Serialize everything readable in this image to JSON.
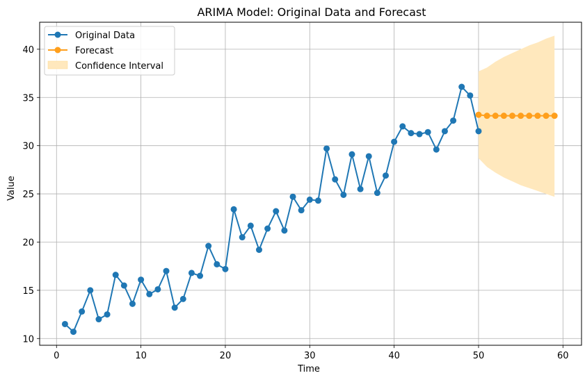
{
  "chart_data": {
    "type": "line",
    "title": "ARIMA Model: Original Data and Forecast",
    "xlabel": "Time",
    "ylabel": "Value",
    "xlim": [
      -2,
      62.2
    ],
    "ylim": [
      9.3,
      42.8
    ],
    "xticks": [
      0,
      10,
      20,
      30,
      40,
      50,
      60
    ],
    "yticks": [
      10,
      15,
      20,
      25,
      30,
      35,
      40
    ],
    "grid": true,
    "legend_position": "top-left",
    "series": [
      {
        "name": "Original Data",
        "color": "#1f77b4",
        "marker": "circle",
        "x": [
          1,
          2,
          3,
          4,
          5,
          6,
          7,
          8,
          9,
          10,
          11,
          12,
          13,
          14,
          15,
          16,
          17,
          18,
          19,
          20,
          21,
          22,
          23,
          24,
          25,
          26,
          27,
          28,
          29,
          30,
          31,
          32,
          33,
          34,
          35,
          36,
          37,
          38,
          39,
          40,
          41,
          42,
          43,
          44,
          45,
          46,
          47,
          48,
          49,
          50
        ],
        "y": [
          11.5,
          10.7,
          12.8,
          15.0,
          12.0,
          12.5,
          16.6,
          15.5,
          13.6,
          16.1,
          14.6,
          15.1,
          17.0,
          13.2,
          14.1,
          16.8,
          16.5,
          19.6,
          17.7,
          17.2,
          23.4,
          20.5,
          21.7,
          19.2,
          21.4,
          23.2,
          21.2,
          24.7,
          23.3,
          24.4,
          24.3,
          29.7,
          26.5,
          24.9,
          29.1,
          25.5,
          28.9,
          25.1,
          26.9,
          30.4,
          32.0,
          31.3,
          31.2,
          31.4,
          29.6,
          31.5,
          32.6,
          36.1,
          35.2,
          31.5
        ]
      },
      {
        "name": "Forecast",
        "color": "#ff9f1c",
        "marker": "circle",
        "x": [
          50,
          51,
          52,
          53,
          54,
          55,
          56,
          57,
          58,
          59
        ],
        "y": [
          33.2,
          33.1,
          33.1,
          33.1,
          33.1,
          33.1,
          33.1,
          33.1,
          33.1,
          33.1
        ]
      }
    ],
    "confidence_interval": {
      "name": "Confidence Interval",
      "color": "#ffe8bd",
      "x": [
        50,
        51,
        52,
        53,
        54,
        55,
        56,
        57,
        58,
        59
      ],
      "lower": [
        28.7,
        27.8,
        27.2,
        26.7,
        26.3,
        25.9,
        25.6,
        25.3,
        25.0,
        24.7
      ],
      "upper": [
        37.7,
        38.1,
        38.7,
        39.2,
        39.6,
        40.0,
        40.4,
        40.7,
        41.1,
        41.4
      ]
    }
  }
}
